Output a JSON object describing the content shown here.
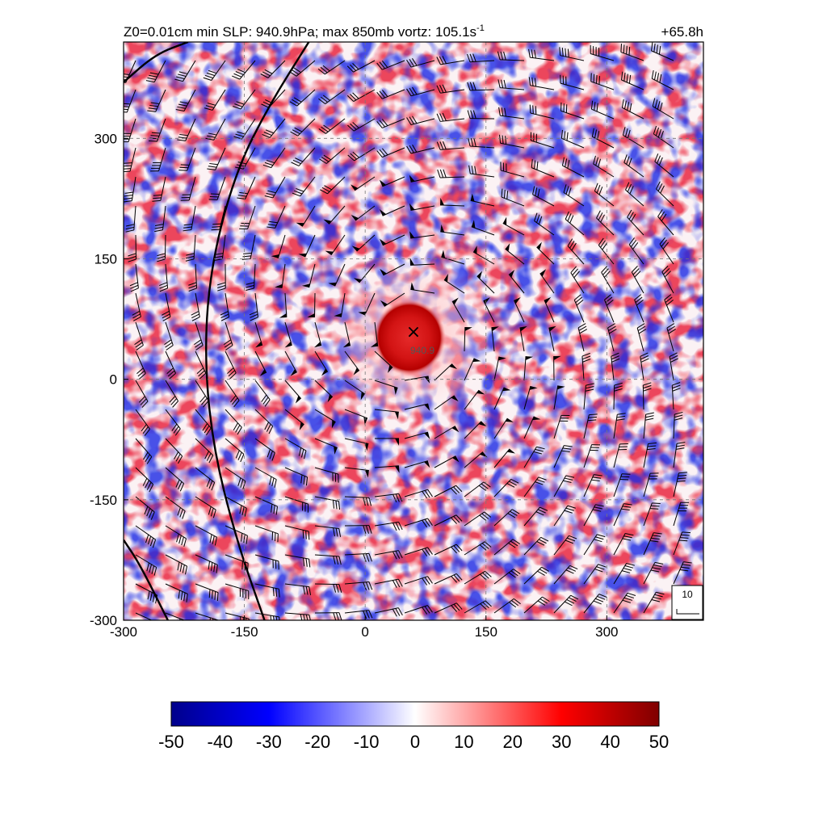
{
  "chart_data": {
    "type": "heatmap",
    "title_left": "Z0=0.01cm  min SLP: 940.9hPa; max 850mb vortz: 105.1s",
    "title_left_exp": "-1",
    "title_right": "+65.8h",
    "xlim": [
      -300,
      420
    ],
    "ylim": [
      -300,
      420
    ],
    "xticks": [
      -300,
      -150,
      0,
      150,
      300
    ],
    "yticks": [
      -300,
      -150,
      0,
      150,
      300
    ],
    "xtick_labels": [
      "-300",
      "-150",
      "0",
      "150",
      "300"
    ],
    "ytick_labels": [
      "-300",
      "-150",
      "0",
      "150",
      "300"
    ],
    "grid": true,
    "center": {
      "x": 60,
      "y": 60,
      "marker": "×",
      "label": "940.9"
    },
    "eye_radius": 45,
    "colorbar": {
      "min": -50,
      "max": 50,
      "ticks": [
        -50,
        -40,
        -30,
        -20,
        -10,
        0,
        10,
        20,
        30,
        40,
        50
      ],
      "tick_labels": [
        "-50",
        "-40",
        "-30",
        "-20",
        "-10",
        "0",
        "10",
        "20",
        "30",
        "40",
        "50"
      ],
      "colors": [
        "#00008b",
        "#0000ff",
        "#ffffff",
        "#ff0000",
        "#7f0000"
      ]
    },
    "wind_key": {
      "label": "10"
    },
    "contours": [
      {
        "points": [
          [
            -300,
            370
          ],
          [
            -260,
            405
          ],
          [
            -220,
            420
          ]
        ]
      },
      {
        "points": [
          [
            -125,
            -300
          ],
          [
            -160,
            -200
          ],
          [
            -190,
            -80
          ],
          [
            -200,
            40
          ],
          [
            -190,
            150
          ],
          [
            -160,
            260
          ],
          [
            -120,
            340
          ],
          [
            -70,
            420
          ]
        ]
      },
      {
        "points": [
          [
            -245,
            -300
          ],
          [
            -280,
            -230
          ],
          [
            -300,
            -200
          ]
        ]
      }
    ]
  }
}
